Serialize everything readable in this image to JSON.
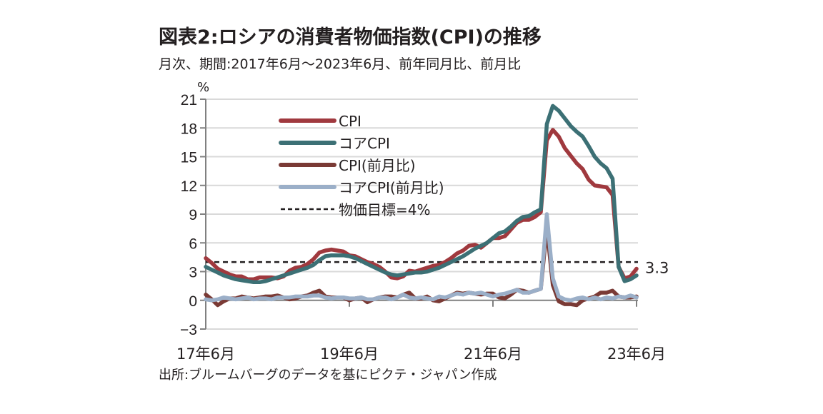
{
  "header": {
    "title": "図表2:ロシアの消費者物価指数(CPI)の推移",
    "subtitle": "月次、期間:2017年6月〜2023年6月、前年同月比、前月比"
  },
  "footer": {
    "source": "出所:ブルームバーグのデータを基にピクテ・ジャパン作成"
  },
  "chart_data": {
    "type": "line",
    "title": "図表2:ロシアの消費者物価指数(CPI)の推移",
    "subtitle": "月次、期間:2017年6月〜2023年6月、前年同月比、前月比",
    "ylabel": "%",
    "xlabel": "",
    "ylim": [
      -3,
      21
    ],
    "yticks": [
      21,
      18,
      15,
      12,
      9,
      6,
      3,
      0,
      -3
    ],
    "ytick_labels": [
      "21",
      "18",
      "15",
      "12",
      "9",
      "6",
      "3",
      "0",
      "−3"
    ],
    "x_start": "2017-06",
    "x_end": "2023-06",
    "xticks": [
      "17年6月",
      "19年6月",
      "21年6月",
      "23年6月"
    ],
    "xtick_month_index": [
      0,
      24,
      48,
      72
    ],
    "grid": true,
    "legend_position": "top-left",
    "series": [
      {
        "name": "CPI",
        "color": "#A0393E",
        "values": [
          4.4,
          3.9,
          3.3,
          3.0,
          2.7,
          2.5,
          2.5,
          2.2,
          2.2,
          2.4,
          2.4,
          2.4,
          2.3,
          2.5,
          3.1,
          3.4,
          3.5,
          3.8,
          4.3,
          5.0,
          5.2,
          5.3,
          5.2,
          5.1,
          4.7,
          4.6,
          4.3,
          4.0,
          3.8,
          3.5,
          3.0,
          2.4,
          2.3,
          2.5,
          3.1,
          3.0,
          3.2,
          3.4,
          3.6,
          3.7,
          4.0,
          4.4,
          4.9,
          5.2,
          5.7,
          5.8,
          5.5,
          6.0,
          6.5,
          6.5,
          6.7,
          7.4,
          8.1,
          8.4,
          8.4,
          8.7,
          9.2,
          16.7,
          17.8,
          17.1,
          15.9,
          15.1,
          14.3,
          13.7,
          12.6,
          12.0,
          11.9,
          11.8,
          11.0,
          3.5,
          2.3,
          2.5,
          3.3
        ]
      },
      {
        "name": "コアCPI",
        "color": "#3C7075",
        "values": [
          3.5,
          3.2,
          2.9,
          2.6,
          2.4,
          2.2,
          2.1,
          2.0,
          1.9,
          1.9,
          2.0,
          2.2,
          2.4,
          2.6,
          2.8,
          3.0,
          3.2,
          3.4,
          3.7,
          4.2,
          4.6,
          4.7,
          4.7,
          4.7,
          4.6,
          4.4,
          4.1,
          3.8,
          3.5,
          3.2,
          2.9,
          2.7,
          2.6,
          2.7,
          2.8,
          2.9,
          2.9,
          3.0,
          3.2,
          3.4,
          3.7,
          4.0,
          4.3,
          4.6,
          5.0,
          5.4,
          5.7,
          6.0,
          6.5,
          7.0,
          7.2,
          7.7,
          8.3,
          8.7,
          8.8,
          9.2,
          9.5,
          18.4,
          20.3,
          19.8,
          19.0,
          18.2,
          17.6,
          17.1,
          16.1,
          15.0,
          14.3,
          13.8,
          12.7,
          3.5,
          2.0,
          2.2,
          2.6
        ]
      },
      {
        "name": "CPI(前月比)",
        "color": "#7A3A35",
        "values": [
          0.6,
          0.1,
          -0.5,
          -0.1,
          0.2,
          0.2,
          0.4,
          0.3,
          0.2,
          0.3,
          0.4,
          0.4,
          0.5,
          0.3,
          0.1,
          0.2,
          0.4,
          0.5,
          0.8,
          1.0,
          0.4,
          0.3,
          0.3,
          0.3,
          0.0,
          0.2,
          0.3,
          -0.2,
          0.1,
          0.3,
          0.4,
          0.4,
          0.3,
          0.6,
          0.8,
          0.2,
          0.2,
          0.4,
          0.0,
          -0.1,
          0.2,
          0.5,
          0.8,
          0.7,
          0.8,
          0.7,
          0.6,
          0.7,
          0.7,
          0.3,
          0.2,
          0.6,
          1.1,
          1.0,
          0.8,
          1.0,
          1.2,
          7.6,
          1.6,
          -0.1,
          -0.4,
          -0.4,
          -0.5,
          0.0,
          0.2,
          0.4,
          0.8,
          0.8,
          1.0,
          0.4,
          0.3,
          0.3,
          0.4
        ]
      },
      {
        "name": "コアCPI(前月比)",
        "color": "#9BAFC8",
        "values": [
          0.1,
          0.0,
          0.1,
          0.3,
          0.2,
          0.1,
          0.2,
          0.3,
          0.1,
          0.2,
          0.2,
          0.1,
          0.3,
          0.3,
          0.3,
          0.4,
          0.4,
          0.4,
          0.5,
          0.5,
          0.3,
          0.2,
          0.3,
          0.3,
          0.2,
          0.2,
          0.3,
          0.1,
          0.1,
          0.3,
          0.3,
          0.1,
          0.3,
          0.6,
          0.3,
          0.2,
          0.3,
          0.2,
          0.1,
          0.4,
          0.3,
          0.5,
          0.7,
          0.6,
          0.8,
          0.7,
          0.8,
          0.6,
          0.4,
          0.6,
          0.7,
          0.9,
          1.1,
          0.8,
          0.8,
          1.0,
          1.2,
          9.0,
          2.3,
          0.4,
          0.1,
          0.0,
          0.2,
          0.3,
          0.1,
          0.3,
          0.1,
          0.3,
          0.2,
          0.4,
          0.3,
          0.5,
          0.3
        ]
      },
      {
        "name": "物価目標=4%",
        "color": "#231F20",
        "style": "dashed",
        "constant": 4
      }
    ],
    "annotations": [
      {
        "text": "3.3",
        "target_series": "CPI",
        "month_index": 72
      }
    ],
    "legend": [
      {
        "label": "CPI",
        "color": "#A0393E",
        "style": "solid"
      },
      {
        "label": "コアCPI",
        "color": "#3C7075",
        "style": "solid"
      },
      {
        "label": "CPI(前月比)",
        "color": "#7A3A35",
        "style": "solid"
      },
      {
        "label": "コアCPI(前月比)",
        "color": "#9BAFC8",
        "style": "solid"
      },
      {
        "label": "物価目標=4%",
        "color": "#231F20",
        "style": "dashed"
      }
    ]
  },
  "colors": {
    "grid": "#D9D9D9",
    "axis": "#808080",
    "text": "#231F20"
  }
}
